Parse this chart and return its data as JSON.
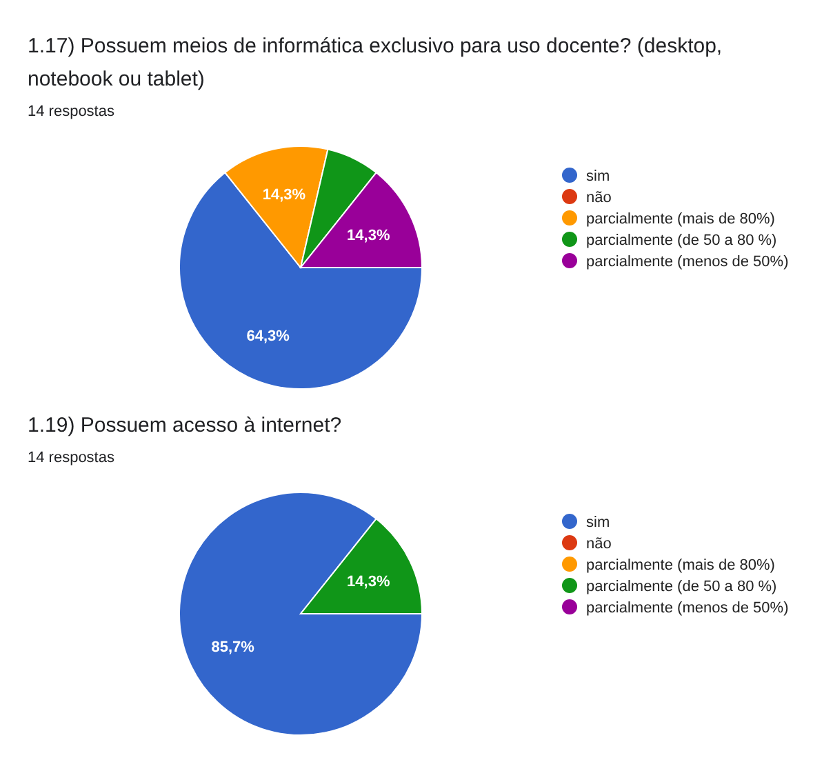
{
  "chart_data": [
    {
      "type": "pie",
      "title": "1.17) Possuem meios de informática exclusivo para uso docente? (desktop, notebook ou tablet)",
      "subtitle": "14 respostas",
      "categories": [
        "sim",
        "não",
        "parcialmente (mais de 80%)",
        "parcialmente (de 50 a 80 %)",
        "parcialmente (menos de 50%)"
      ],
      "values": [
        64.3,
        0,
        14.3,
        7.1,
        14.3
      ],
      "value_labels": [
        "64,3%",
        null,
        "14,3%",
        null,
        "14,3%"
      ],
      "colors": [
        "#3366cc",
        "#dc3912",
        "#ff9900",
        "#109618",
        "#990099"
      ],
      "legend": "right"
    },
    {
      "type": "pie",
      "title": "1.19) Possuem acesso à internet?",
      "subtitle": "14 respostas",
      "categories": [
        "sim",
        "não",
        "parcialmente (mais de 80%)",
        "parcialmente (de 50 a 80 %)",
        "parcialmente (menos de 50%)"
      ],
      "values": [
        85.7,
        0,
        0,
        14.3,
        0
      ],
      "value_labels": [
        "85,7%",
        null,
        null,
        "14,3%",
        null
      ],
      "colors": [
        "#3366cc",
        "#dc3912",
        "#ff9900",
        "#109618",
        "#990099"
      ],
      "legend": "right"
    }
  ]
}
